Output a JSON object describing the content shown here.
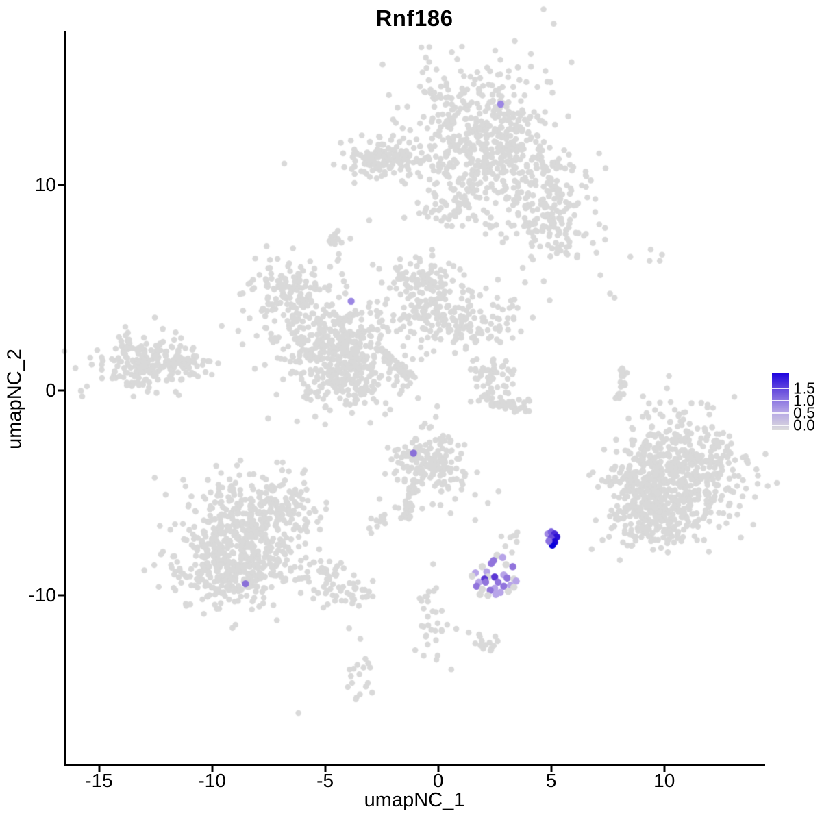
{
  "title": "Rnf186",
  "axes": {
    "x_label": "umapNC_1",
    "y_label": "umapNC_2"
  },
  "legend": {
    "labels": [
      "1.5",
      "1.0",
      "0.5",
      "0.0"
    ],
    "gradient_top_to_bottom": [
      "#1f05df",
      "#6f55de",
      "#b3a3e6",
      "#dcdcdc"
    ]
  },
  "chart_data": {
    "type": "scatter",
    "title": "Rnf186",
    "xlabel": "umapNC_1",
    "ylabel": "umapNC_2",
    "xlim": [
      -16.5,
      14.4
    ],
    "ylim": [
      -18.2,
      17.5
    ],
    "grid": false,
    "x_ticks": [
      {
        "value": -15,
        "label": "-15"
      },
      {
        "value": -10,
        "label": "-10"
      },
      {
        "value": -5,
        "label": "-5"
      },
      {
        "value": 0,
        "label": "0"
      },
      {
        "value": 5,
        "label": "5"
      },
      {
        "value": 10,
        "label": "10"
      }
    ],
    "y_ticks": [
      {
        "value": 10,
        "label": "10"
      },
      {
        "value": 0,
        "label": "0"
      },
      {
        "value": -10,
        "label": "-10"
      }
    ],
    "colorbar": {
      "title": "",
      "tick_labels": [
        "1.5",
        "1.0",
        "0.5",
        "0.0"
      ],
      "min": 0.0,
      "max": 1.5,
      "low_color": "#d9d9d9",
      "high_color": "#0b00dc",
      "position": "right"
    },
    "background_point_color": "#d9d9d9",
    "background_point_radius": 4.3,
    "expressing_point_radius": 5.2,
    "clusters": [
      {
        "name": "top-main",
        "cx": 1.55,
        "cy": 13.2,
        "sx": 1.5,
        "sy": 1.55,
        "n": 270,
        "seed": 11
      },
      {
        "name": "top-lower",
        "cx": 1.9,
        "cy": 10.9,
        "sx": 0.95,
        "sy": 1.2,
        "n": 130,
        "seed": 12
      },
      {
        "name": "top-right-arm",
        "cx": 4.3,
        "cy": 9.7,
        "sx": 1.2,
        "sy": 1.35,
        "n": 150,
        "seed": 13
      },
      {
        "name": "top-right-lower",
        "cx": 5.2,
        "cy": 8.0,
        "sx": 0.8,
        "sy": 1.0,
        "n": 80,
        "seed": 14
      },
      {
        "name": "top-left-arm",
        "cx": -1.6,
        "cy": 11.1,
        "sx": 1.5,
        "sy": 0.45,
        "n": 110,
        "seed": 15
      },
      {
        "name": "top-left-blob",
        "cx": -2.8,
        "cy": 11.4,
        "sx": 0.65,
        "sy": 0.55,
        "n": 55,
        "seed": 16
      },
      {
        "name": "top-connector",
        "cx": 0.5,
        "cy": 8.9,
        "sx": 0.7,
        "sy": 0.6,
        "n": 45,
        "seed": 17
      },
      {
        "name": "top-right-edge",
        "cx": 3.0,
        "cy": 11.9,
        "sx": 0.8,
        "sy": 1.0,
        "n": 90,
        "seed": 18
      },
      {
        "name": "mid-left-wing",
        "cx": -6.6,
        "cy": 4.9,
        "sx": 0.95,
        "sy": 0.8,
        "n": 140,
        "seed": 21
      },
      {
        "name": "mid-left-band",
        "cx": -4.9,
        "cy": 2.6,
        "sx": 1.5,
        "sy": 0.75,
        "n": 220,
        "seed": 22
      },
      {
        "name": "mid-central",
        "cx": -4.3,
        "cy": 0.75,
        "sx": 1.25,
        "sy": 0.95,
        "n": 250,
        "seed": 23
      },
      {
        "name": "mid-right-band",
        "cx": 0.3,
        "cy": 3.5,
        "sx": 1.6,
        "sy": 0.75,
        "n": 210,
        "seed": 24
      },
      {
        "name": "mid-upper",
        "cx": -0.8,
        "cy": 5.3,
        "sx": 0.8,
        "sy": 0.6,
        "n": 90,
        "seed": 25
      },
      {
        "name": "mid-top-blob",
        "cx": -4.55,
        "cy": 7.15,
        "sx": 0.3,
        "sy": 0.4,
        "n": 14,
        "seed": 26
      },
      {
        "name": "left-island",
        "cx": -12.9,
        "cy": 1.35,
        "sx": 1.1,
        "sy": 0.7,
        "n": 210,
        "seed": 31
      },
      {
        "name": "left-island-tip",
        "cx": -10.9,
        "cy": 1.3,
        "sx": 0.45,
        "sy": 0.28,
        "n": 28,
        "seed": 32
      },
      {
        "name": "crescent-top",
        "cx": 2.5,
        "cy": 0.75,
        "sx": 0.5,
        "sy": 0.45,
        "n": 48,
        "seed": 41
      },
      {
        "name": "right-big",
        "cx": 10.5,
        "cy": -4.3,
        "sx": 1.4,
        "sy": 1.5,
        "n": 620,
        "seed": 51
      },
      {
        "name": "right-big-lower",
        "cx": 9.5,
        "cy": -5.9,
        "sx": 0.9,
        "sy": 0.85,
        "n": 180,
        "seed": 52
      },
      {
        "name": "right-appendage",
        "cx": 8.3,
        "cy": -4.4,
        "sx": 0.35,
        "sy": 0.45,
        "n": 26,
        "seed": 53
      },
      {
        "name": "botleft-main",
        "cx": -8.6,
        "cy": -7.0,
        "sx": 1.5,
        "sy": 1.35,
        "n": 430,
        "seed": 61
      },
      {
        "name": "botleft-lower",
        "cx": -9.3,
        "cy": -9.0,
        "sx": 1.2,
        "sy": 0.8,
        "n": 230,
        "seed": 62
      },
      {
        "name": "botleft-topbump",
        "cx": -7.0,
        "cy": -5.6,
        "sx": 0.8,
        "sy": 0.5,
        "n": 70,
        "seed": 63
      },
      {
        "name": "centerbot-main",
        "cx": -0.35,
        "cy": -3.5,
        "sx": 0.9,
        "sy": 0.75,
        "n": 170,
        "seed": 71
      },
      {
        "name": "centerbot-sideblob",
        "cx": -2.65,
        "cy": -6.4,
        "sx": 0.28,
        "sy": 0.28,
        "n": 10,
        "seed": 72
      },
      {
        "name": "near-purple-gray",
        "cx": 3.3,
        "cy": -7.4,
        "sx": 0.3,
        "sy": 0.25,
        "n": 8,
        "seed": 73
      },
      {
        "name": "trail-squiggle",
        "cx": -0.4,
        "cy": -11.0,
        "sx": 0.28,
        "sy": 1.05,
        "n": 30,
        "seed": 81
      },
      {
        "name": "trail-blob",
        "cx": 2.2,
        "cy": -12.35,
        "sx": 0.42,
        "sy": 0.3,
        "n": 14,
        "seed": 82
      },
      {
        "name": "trail-vertical",
        "cx": -3.45,
        "cy": -14.05,
        "sx": 0.26,
        "sy": 0.85,
        "n": 18,
        "seed": 83
      }
    ],
    "paths": [
      {
        "name": "mid-diag-streak",
        "pts": [
          [
            -2.45,
            1.95
          ],
          [
            -1.7,
            1.1
          ],
          [
            -1.15,
            0.45
          ]
        ],
        "n": 40,
        "w": 0.12,
        "seed": 91
      },
      {
        "name": "crescent-arc",
        "pts": [
          [
            1.8,
            -0.3
          ],
          [
            2.9,
            -1.05
          ],
          [
            3.95,
            -0.75
          ]
        ],
        "n": 48,
        "w": 0.15,
        "seed": 92
      },
      {
        "name": "right-thin-arc",
        "pts": [
          [
            8.15,
            1.1
          ],
          [
            8.35,
            0.3
          ],
          [
            7.75,
            -0.65
          ]
        ],
        "n": 24,
        "w": 0.08,
        "seed": 93
      },
      {
        "name": "botleft-tail",
        "pts": [
          [
            -5.8,
            -8.8
          ],
          [
            -4.4,
            -9.5
          ],
          [
            -3.1,
            -10.2
          ]
        ],
        "n": 70,
        "w": 0.45,
        "seed": 94
      },
      {
        "name": "centerbot-tail",
        "pts": [
          [
            -0.95,
            -4.7
          ],
          [
            -1.3,
            -5.5
          ],
          [
            -1.6,
            -6.3
          ]
        ],
        "n": 26,
        "w": 0.16,
        "seed": 95
      }
    ],
    "sparse_points": [
      [
        7.0,
        6.7
      ],
      [
        8.5,
        6.5
      ],
      [
        9.4,
        6.85
      ],
      [
        9.9,
        6.6
      ],
      [
        9.35,
        6.3
      ],
      [
        9.8,
        6.3
      ],
      [
        7.6,
        4.7
      ],
      [
        7.8,
        4.5
      ],
      [
        -3.05,
        8.27
      ],
      [
        -1.5,
        8.4
      ],
      [
        -4.45,
        6.3
      ],
      [
        -4.25,
        5.65
      ],
      [
        -4.05,
        5.05
      ],
      [
        2.0,
        0.2
      ],
      [
        2.4,
        -0.1
      ],
      [
        2.75,
        -0.35
      ],
      [
        3.1,
        -0.15
      ],
      [
        3.3,
        0.3
      ],
      [
        1.75,
        0.55
      ],
      [
        0.45,
        -4.8
      ],
      [
        0.75,
        -5.3
      ],
      [
        0.1,
        -5.6
      ],
      [
        0.55,
        -6.0
      ],
      [
        2.67,
        -4.93
      ],
      [
        2.2,
        -5.5
      ],
      [
        0.4,
        -11.43
      ],
      [
        0.8,
        -11.63
      ],
      [
        1.35,
        -11.8
      ],
      [
        0.58,
        -13.6
      ],
      [
        -3.94,
        -11.6
      ],
      [
        -6.18,
        -15.73
      ],
      [
        1.64,
        -6.33
      ]
    ],
    "expressing_points": [
      {
        "x": 2.76,
        "y": 13.93,
        "color": "#9b86e3"
      },
      {
        "x": -3.85,
        "y": 4.33,
        "color": "#9b86e3"
      },
      {
        "x": -8.52,
        "y": -9.43,
        "color": "#8a70d8"
      },
      {
        "x": -1.09,
        "y": -3.07,
        "color": "#8a70d8"
      },
      {
        "x": 2.6,
        "y": -8.05,
        "color": "#d9d9d9"
      },
      {
        "x": 2.85,
        "y": -8.15,
        "color": "#b7a4e8"
      },
      {
        "x": 2.35,
        "y": -8.45,
        "color": "#9174dc"
      },
      {
        "x": 1.95,
        "y": -8.6,
        "color": "#d9d9d9"
      },
      {
        "x": 3.0,
        "y": -8.5,
        "color": "#d9d9d9"
      },
      {
        "x": 3.3,
        "y": -8.6,
        "color": "#9174dc"
      },
      {
        "x": 2.15,
        "y": -8.85,
        "color": "#b7a4e8"
      },
      {
        "x": 1.65,
        "y": -8.9,
        "color": "#b7a4e8"
      },
      {
        "x": 2.9,
        "y": -9.0,
        "color": "#b7a4e8"
      },
      {
        "x": 1.5,
        "y": -9.05,
        "color": "#d9d9d9"
      },
      {
        "x": 2.45,
        "y": -8.3,
        "color": "#9174dc"
      },
      {
        "x": 2.2,
        "y": -9.1,
        "color": "#d9d9d9"
      },
      {
        "x": 3.05,
        "y": -9.15,
        "color": "#9174dc"
      },
      {
        "x": 3.35,
        "y": -9.2,
        "color": "#d9d9d9"
      },
      {
        "x": 2.5,
        "y": -9.1,
        "color": "#5a36d4"
      },
      {
        "x": 2.05,
        "y": -9.2,
        "color": "#5a36d4"
      },
      {
        "x": 1.8,
        "y": -9.35,
        "color": "#b7a4e8"
      },
      {
        "x": 2.1,
        "y": -9.35,
        "color": "#9174dc"
      },
      {
        "x": 2.65,
        "y": -9.35,
        "color": "#9174dc"
      },
      {
        "x": 3.2,
        "y": -9.5,
        "color": "#b7a4e8"
      },
      {
        "x": 3.45,
        "y": -9.3,
        "color": "#b7a4e8"
      },
      {
        "x": 1.7,
        "y": -9.55,
        "color": "#9174dc"
      },
      {
        "x": 2.5,
        "y": -9.65,
        "color": "#b7a4e8"
      },
      {
        "x": 1.95,
        "y": -9.7,
        "color": "#d9d9d9"
      },
      {
        "x": 2.3,
        "y": -9.75,
        "color": "#9174dc"
      },
      {
        "x": 2.9,
        "y": -9.55,
        "color": "#9174dc"
      },
      {
        "x": 2.75,
        "y": -9.85,
        "color": "#b7a4e8"
      },
      {
        "x": 3.1,
        "y": -9.8,
        "color": "#d9d9d9"
      },
      {
        "x": 2.2,
        "y": -10.0,
        "color": "#d9d9d9"
      },
      {
        "x": 1.85,
        "y": -9.95,
        "color": "#d9d9d9"
      },
      {
        "x": 2.55,
        "y": -9.95,
        "color": "#b7a4e8"
      },
      {
        "x": 3.35,
        "y": -9.6,
        "color": "#d9d9d9"
      },
      {
        "x": 4.85,
        "y": -7.0,
        "color": "#a18ae4"
      },
      {
        "x": 5.0,
        "y": -6.9,
        "color": "#7a5fe0"
      },
      {
        "x": 5.15,
        "y": -7.0,
        "color": "#4b2ad8"
      },
      {
        "x": 5.25,
        "y": -7.15,
        "color": "#2d11d4"
      },
      {
        "x": 5.0,
        "y": -7.2,
        "color": "#6a4bdc"
      },
      {
        "x": 5.15,
        "y": -7.4,
        "color": "#1c06d6"
      },
      {
        "x": 5.05,
        "y": -7.55,
        "color": "#0900dc"
      },
      {
        "x": 4.9,
        "y": -7.35,
        "color": "#8a70e0"
      }
    ]
  }
}
